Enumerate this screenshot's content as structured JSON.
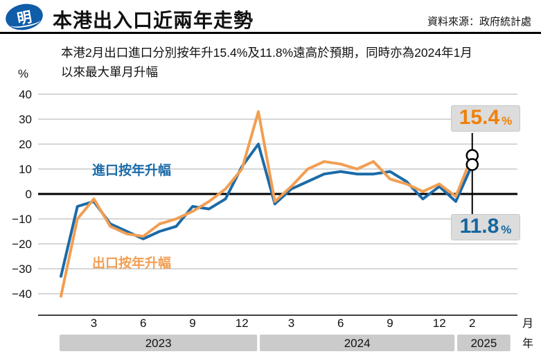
{
  "header": {
    "logo_text": "明",
    "title": "本港出入口近兩年走勢",
    "source": "資料來源：政府統計處"
  },
  "subtitle": "本港2月出口進口分別按年升15.4%及11.8%遠高於預期，同時亦為2024年1月以來最大單月升幅",
  "series_labels": {
    "import": "進口按年升幅",
    "export": "出口按年升幅"
  },
  "callouts": {
    "export": {
      "value": "15.4",
      "unit": "%"
    },
    "import": {
      "value": "11.8",
      "unit": "%"
    }
  },
  "colors": {
    "import": "#1b6ba8",
    "export": "#f29e52",
    "import_callout": "#15669f",
    "export_callout": "#ef8008",
    "grid": "#c8c8c8",
    "year_band_bg": "#cbcbcb"
  },
  "chart_data": {
    "type": "line",
    "title": "本港出入口近兩年走勢",
    "ylabel": "%",
    "ylim": [
      -40,
      40
    ],
    "grid": true,
    "y_ticks": [
      {
        "label": "40",
        "value": 40
      },
      {
        "label": "30",
        "value": 30
      },
      {
        "label": "20",
        "value": 20
      },
      {
        "label": "10",
        "value": 10
      },
      {
        "label": "0",
        "value": 0
      },
      {
        "label": "−10",
        "value": -10
      },
      {
        "label": "−20",
        "value": -20
      },
      {
        "label": "−30",
        "value": -30
      },
      {
        "label": "−40",
        "value": -40
      }
    ],
    "months": [
      "2023-01",
      "2023-02",
      "2023-03",
      "2023-04",
      "2023-05",
      "2023-06",
      "2023-07",
      "2023-08",
      "2023-09",
      "2023-10",
      "2023-11",
      "2023-12",
      "2024-01",
      "2024-02",
      "2024-03",
      "2024-04",
      "2024-05",
      "2024-06",
      "2024-07",
      "2024-08",
      "2024-09",
      "2024-10",
      "2024-11",
      "2024-12",
      "2025-01",
      "2025-02"
    ],
    "series": [
      {
        "id": "import",
        "name": "進口按年升幅",
        "color": "#1b6ba8",
        "values": [
          -33,
          -5,
          -3,
          -12,
          -15,
          -18,
          -15,
          -13,
          -5,
          -6,
          -2,
          11,
          20,
          -4,
          2,
          5,
          8,
          9,
          8,
          8,
          9,
          5,
          -2,
          3,
          -3,
          11.8
        ]
      },
      {
        "id": "export",
        "name": "出口按年升幅",
        "color": "#f29e52",
        "values": [
          -41,
          -10,
          -2,
          -13,
          -16,
          -17,
          -12,
          -10,
          -7,
          -3,
          2,
          10,
          33,
          -3,
          3,
          10,
          13,
          12,
          10,
          13,
          6,
          4,
          1,
          4,
          -1,
          15.4
        ]
      }
    ],
    "x_ticks": [
      {
        "label": "3",
        "month_index": 2
      },
      {
        "label": "6",
        "month_index": 5
      },
      {
        "label": "9",
        "month_index": 8
      },
      {
        "label": "12",
        "month_index": 11
      },
      {
        "label": "3",
        "month_index": 14
      },
      {
        "label": "6",
        "month_index": 17
      },
      {
        "label": "9",
        "month_index": 20
      },
      {
        "label": "12",
        "month_index": 23
      },
      {
        "label": "2",
        "month_index": 25
      }
    ],
    "axis_units": {
      "month": "月",
      "year": "年"
    },
    "year_bands": [
      {
        "label": "2023",
        "from": 0,
        "to": 11
      },
      {
        "label": "2024",
        "from": 12,
        "to": 23
      },
      {
        "label": "2025",
        "from": 24,
        "to": 25
      }
    ],
    "legend_position": "inside",
    "annotations": [
      {
        "series": "出口按年升幅",
        "month": "2025-02",
        "value": 15.4,
        "label": "15.4%"
      },
      {
        "series": "進口按年升幅",
        "month": "2025-02",
        "value": 11.8,
        "label": "11.8%"
      }
    ]
  }
}
